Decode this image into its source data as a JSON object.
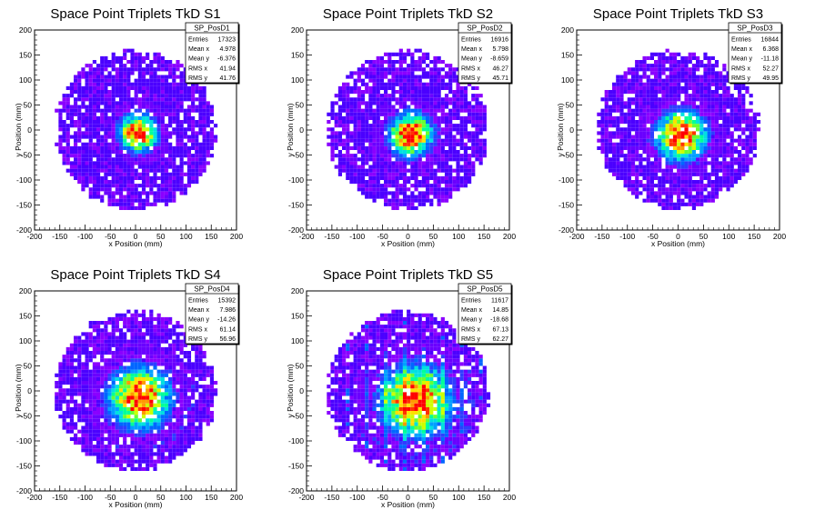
{
  "page": {
    "background": "#ffffff"
  },
  "palette": [
    "#4b00ff",
    "#6a00ff",
    "#8a00ff",
    "#2e3dff",
    "#0066ff",
    "#00a0ff",
    "#00e0e0",
    "#00ff99",
    "#66ff33",
    "#ccff00",
    "#ffe000",
    "#ff9900",
    "#ff3300",
    "#ff0000"
  ],
  "chart_data": [
    {
      "type": "heatmap",
      "title": "Space Point Triplets TkD S1",
      "xlabel": "x Position (mm)",
      "ylabel": "y Position (mm)",
      "xlim": [
        -200,
        200
      ],
      "ylim": [
        -200,
        200
      ],
      "x_ticks": [
        "-200",
        "-150",
        "-100",
        "-50",
        "0",
        "50",
        "100",
        "150",
        "200"
      ],
      "y_ticks": [
        "-200",
        "-150",
        "-100",
        "-50",
        "0",
        "50",
        "100",
        "150",
        "200"
      ],
      "footprint_radius_mm": 155,
      "core_center_mm": [
        5,
        -6
      ],
      "core_sigma_mm": 26,
      "stats": {
        "name": "SP_PosD1",
        "rows": [
          {
            "label": "Entries",
            "value": "17323"
          },
          {
            "label": "Mean x",
            "value": "4.978"
          },
          {
            "label": "Mean y",
            "value": "-6.376"
          },
          {
            "label": "RMS x",
            "value": "41.94"
          },
          {
            "label": "RMS y",
            "value": "41.76"
          }
        ]
      }
    },
    {
      "type": "heatmap",
      "title": "Space Point Triplets TkD S2",
      "xlabel": "x Position (mm)",
      "ylabel": "y Position (mm)",
      "xlim": [
        -200,
        200
      ],
      "ylim": [
        -200,
        200
      ],
      "x_ticks": [
        "-200",
        "-150",
        "-100",
        "-50",
        "0",
        "50",
        "100",
        "150",
        "200"
      ],
      "y_ticks": [
        "-200",
        "-150",
        "-100",
        "-50",
        "0",
        "50",
        "100",
        "150",
        "200"
      ],
      "footprint_radius_mm": 155,
      "core_center_mm": [
        6,
        -9
      ],
      "core_sigma_mm": 30,
      "stats": {
        "name": "SP_PosD2",
        "rows": [
          {
            "label": "Entries",
            "value": "16916"
          },
          {
            "label": "Mean x",
            "value": "5.798"
          },
          {
            "label": "Mean y",
            "value": "-8.659"
          },
          {
            "label": "RMS x",
            "value": "46.27"
          },
          {
            "label": "RMS y",
            "value": "45.71"
          }
        ]
      }
    },
    {
      "type": "heatmap",
      "title": "Space Point Triplets TkD S3",
      "xlabel": "x Position (mm)",
      "ylabel": "y Position (mm)",
      "xlim": [
        -200,
        200
      ],
      "ylim": [
        -200,
        200
      ],
      "x_ticks": [
        "-200",
        "-150",
        "-100",
        "-50",
        "0",
        "50",
        "100",
        "150",
        "200"
      ],
      "y_ticks": [
        "-200",
        "-150",
        "-100",
        "-50",
        "0",
        "50",
        "100",
        "150",
        "200"
      ],
      "footprint_radius_mm": 155,
      "core_center_mm": [
        6,
        -11
      ],
      "core_sigma_mm": 34,
      "stats": {
        "name": "SP_PosD3",
        "rows": [
          {
            "label": "Entries",
            "value": "16844"
          },
          {
            "label": "Mean x",
            "value": "6.368"
          },
          {
            "label": "Mean y",
            "value": "-11.18"
          },
          {
            "label": "RMS x",
            "value": "52.27"
          },
          {
            "label": "RMS y",
            "value": "49.95"
          }
        ]
      }
    },
    {
      "type": "heatmap",
      "title": "Space Point Triplets TkD S4",
      "xlabel": "x Position (mm)",
      "ylabel": "y Position (mm)",
      "xlim": [
        -200,
        200
      ],
      "ylim": [
        -200,
        200
      ],
      "x_ticks": [
        "-200",
        "-150",
        "-100",
        "-50",
        "0",
        "50",
        "100",
        "150",
        "200"
      ],
      "y_ticks": [
        "-200",
        "-150",
        "-100",
        "-50",
        "0",
        "50",
        "100",
        "150",
        "200"
      ],
      "footprint_radius_mm": 155,
      "core_center_mm": [
        8,
        -14
      ],
      "core_sigma_mm": 42,
      "stats": {
        "name": "SP_PosD4",
        "rows": [
          {
            "label": "Entries",
            "value": "15392"
          },
          {
            "label": "Mean x",
            "value": "7.986"
          },
          {
            "label": "Mean y",
            "value": "-14.26"
          },
          {
            "label": "RMS x",
            "value": "61.14"
          },
          {
            "label": "RMS y",
            "value": "56.96"
          }
        ]
      }
    },
    {
      "type": "heatmap",
      "title": "Space Point Triplets TkD S5",
      "xlabel": "x Position (mm)",
      "ylabel": "y Position (mm)",
      "xlim": [
        -200,
        200
      ],
      "ylim": [
        -200,
        200
      ],
      "x_ticks": [
        "-200",
        "-150",
        "-100",
        "-50",
        "0",
        "50",
        "100",
        "150",
        "200"
      ],
      "y_ticks": [
        "-200",
        "-150",
        "-100",
        "-50",
        "0",
        "50",
        "100",
        "150",
        "200"
      ],
      "footprint_radius_mm": 155,
      "core_center_mm": [
        15,
        -19
      ],
      "core_sigma_mm": 48,
      "stats": {
        "name": "SP_PosD5",
        "rows": [
          {
            "label": "Entries",
            "value": "11617"
          },
          {
            "label": "Mean x",
            "value": "14.85"
          },
          {
            "label": "Mean y",
            "value": "-18.68"
          },
          {
            "label": "RMS x",
            "value": "67.13"
          },
          {
            "label": "RMS y",
            "value": "62.27"
          }
        ]
      }
    }
  ]
}
